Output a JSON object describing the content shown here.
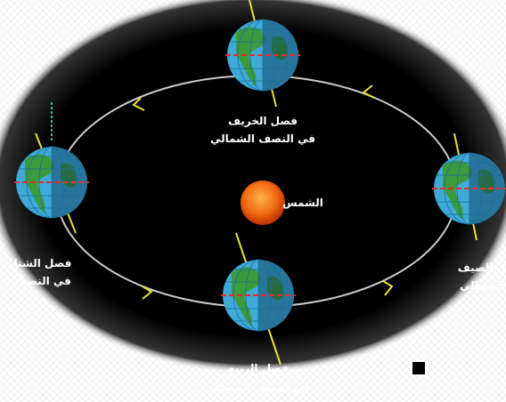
{
  "diagram": {
    "sun": "الشمس",
    "autumn": {
      "title": "فصل الخريف",
      "subtitle": "في النصف الشمالي"
    },
    "summer": {
      "title": "ل الصيف",
      "subtitle": "الشمالي"
    },
    "winter": {
      "title": "فصل الشتا",
      "subtitle": "في النصف"
    },
    "spring": {
      "title": "فصل الربيع",
      "subtitle": "في النصف الشمالي"
    }
  }
}
